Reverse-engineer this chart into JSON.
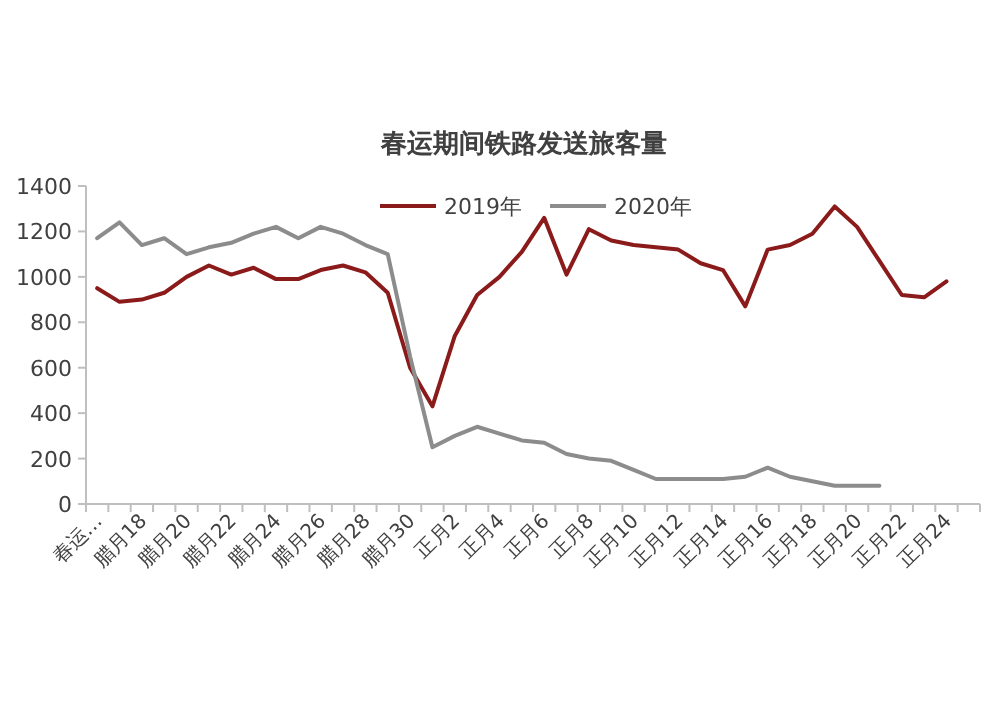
{
  "chart_data": {
    "type": "line",
    "title": "春运期间铁路发送旅客量",
    "categories": [
      "春运…",
      null,
      "腊月18",
      null,
      "腊月20",
      null,
      "腊月22",
      null,
      "腊月24",
      null,
      "腊月26",
      null,
      "腊月28",
      null,
      "腊月30",
      null,
      "正月2",
      null,
      "正月4",
      null,
      "正月6",
      null,
      "正月8",
      null,
      "正月10",
      null,
      "正月12",
      null,
      "正月14",
      null,
      "正月16",
      null,
      "正月18",
      null,
      "正月20",
      null,
      "正月22",
      null,
      "正月24",
      null
    ],
    "series": [
      {
        "name": "2019年",
        "color": "#8b1a1a",
        "values": [
          950,
          890,
          900,
          930,
          1000,
          1050,
          1010,
          1040,
          990,
          990,
          1030,
          1050,
          1020,
          930,
          600,
          430,
          740,
          920,
          1000,
          1110,
          1260,
          1010,
          1210,
          1160,
          1140,
          1130,
          1120,
          1060,
          1030,
          870,
          1120,
          1140,
          1190,
          1310,
          1220,
          1070,
          920,
          910,
          980,
          null
        ]
      },
      {
        "name": "2020年",
        "color": "#8c8c8c",
        "values": [
          1170,
          1240,
          1140,
          1170,
          1100,
          1130,
          1150,
          1190,
          1220,
          1170,
          1220,
          1190,
          1140,
          1100,
          650,
          250,
          300,
          340,
          310,
          280,
          270,
          220,
          200,
          190,
          150,
          110,
          110,
          110,
          110,
          120,
          160,
          120,
          100,
          80,
          80,
          80,
          null,
          null,
          null,
          null
        ]
      }
    ],
    "ylim": [
      0,
      1400
    ],
    "yticks": [
      0,
      200,
      400,
      600,
      800,
      1000,
      1200,
      1400
    ],
    "legend": "top",
    "marker": "none",
    "line_style": "solid"
  }
}
